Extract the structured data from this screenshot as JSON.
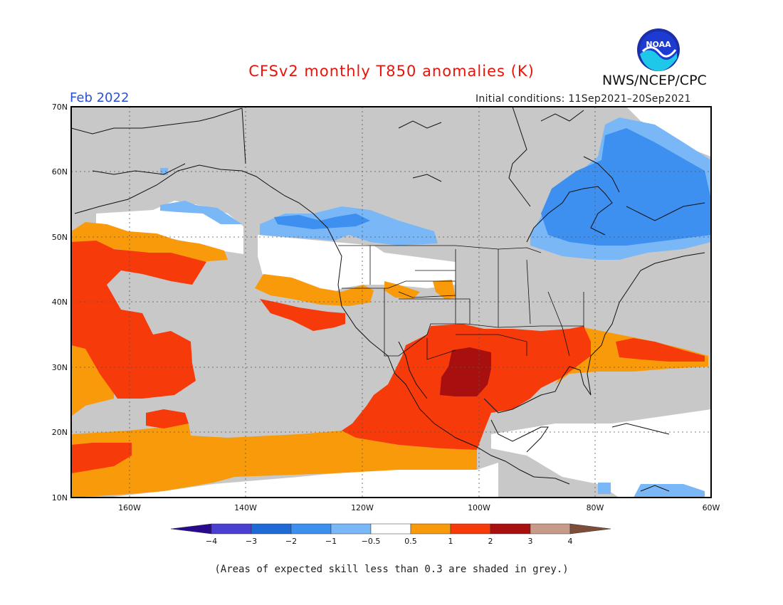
{
  "title": "CFSv2 monthly T850 anomalies (K)",
  "org_label": "NWS/NCEP/CPC",
  "logo_text": "NOAA",
  "forecast_month": "Feb 2022",
  "initial_conditions": "Initial conditions: 11Sep2021–20Sep2021",
  "footnote": "(Areas of expected skill less than 0.3 are shaded in grey.)",
  "map": {
    "lon_range": [
      -170,
      -60
    ],
    "lat_range": [
      10,
      70
    ],
    "lat_ticks": [
      "70N",
      "60N",
      "50N",
      "40N",
      "30N",
      "20N",
      "10N"
    ],
    "lon_ticks": [
      "160W",
      "140W",
      "120W",
      "100W",
      "80W",
      "60W"
    ],
    "low_skill_color": "#c8c8c8"
  },
  "legend": {
    "labels": [
      "−4",
      "−3",
      "−2",
      "−1",
      "−0.5",
      "0.5",
      "1",
      "2",
      "3",
      "4"
    ],
    "colors": [
      "#2a0a8c",
      "#4a3fd0",
      "#1e6ad6",
      "#3d8ff0",
      "#79b7f7",
      "#ffffff",
      "#f99a0a",
      "#f73a0a",
      "#a80f0f",
      "#c89a8a",
      "#7d4d3a"
    ]
  }
}
